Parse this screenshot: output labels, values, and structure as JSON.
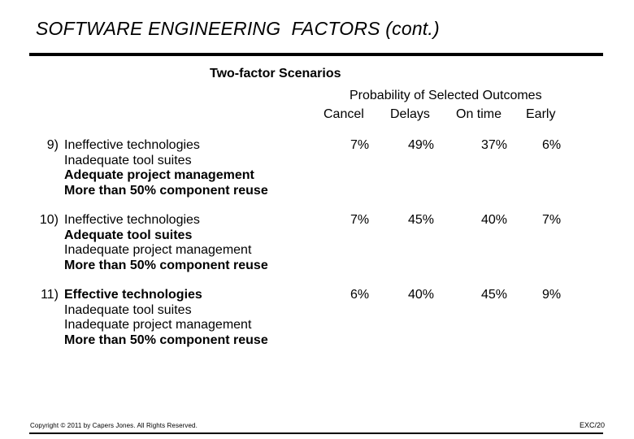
{
  "header": {
    "title": "SOFTWARE ENGINEERING  FACTORS (cont.)",
    "subtitle": "Two-factor Scenarios"
  },
  "table": {
    "heading": "Probability of Selected Outcomes",
    "columns": [
      "Cancel",
      "Delays",
      "On time",
      "Early"
    ],
    "scenarios": [
      {
        "number": "9)",
        "factors": [
          {
            "text": "Ineffective technologies",
            "bold": false
          },
          {
            "text": "Inadequate tool suites",
            "bold": false
          },
          {
            "text": "Adequate project management",
            "bold": true
          },
          {
            "text": "More than 50% component reuse",
            "bold": true
          }
        ],
        "values": [
          "7%",
          "49%",
          "37%",
          "6%"
        ]
      },
      {
        "number": "10)",
        "factors": [
          {
            "text": "Ineffective technologies",
            "bold": false
          },
          {
            "text": "Adequate tool suites",
            "bold": true
          },
          {
            "text": "Inadequate project management",
            "bold": false
          },
          {
            "text": "More than 50% component reuse",
            "bold": true
          }
        ],
        "values": [
          "7%",
          "45%",
          "40%",
          "7%"
        ]
      },
      {
        "number": "11)",
        "factors": [
          {
            "text": "Effective technologies",
            "bold": true
          },
          {
            "text": "Inadequate tool suites",
            "bold": false
          },
          {
            "text": "Inadequate project management",
            "bold": false
          },
          {
            "text": "More than 50% component reuse",
            "bold": true
          }
        ],
        "values": [
          "6%",
          "40%",
          "45%",
          "9%"
        ]
      }
    ]
  },
  "footer": {
    "copyright": "Copyright © 2011 by Capers Jones.  All Rights Reserved.",
    "page": "EXC/20"
  }
}
